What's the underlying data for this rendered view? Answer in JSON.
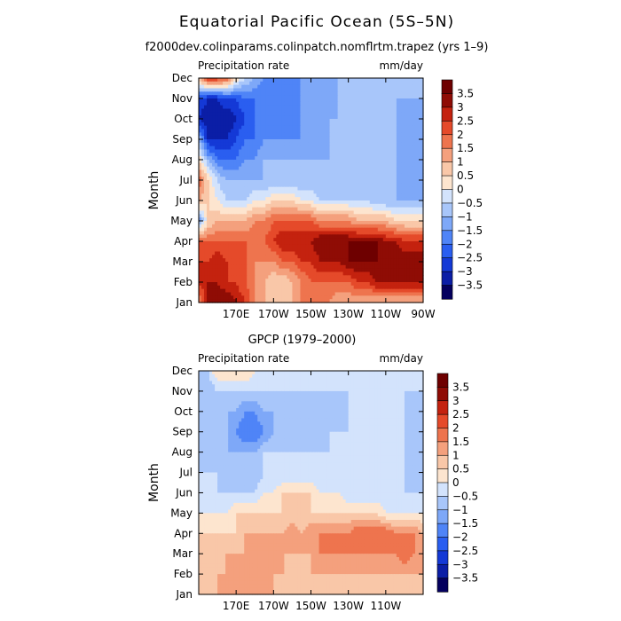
{
  "figure": {
    "title": "Equatorial Pacific Ocean (5S–5N)",
    "subtitle": "f2000dev.colinparams.colinpatch.nomflrtm.trapez (yrs 1–9)"
  },
  "chart_data": [
    {
      "type": "heatmap",
      "panel_title": "",
      "left_label": "Precipitation rate",
      "right_label": "mm/day",
      "xlabel": "",
      "ylabel": "Month",
      "x_range": [
        150,
        270
      ],
      "x_ticks": [
        {
          "lon": 170,
          "label": "170E"
        },
        {
          "lon": 190,
          "label": "170W"
        },
        {
          "lon": 210,
          "label": "150W"
        },
        {
          "lon": 230,
          "label": "130W"
        },
        {
          "lon": 250,
          "label": "110W"
        },
        {
          "lon": 270,
          "label": "90W"
        }
      ],
      "y_ticks": [
        "Jan",
        "Feb",
        "Mar",
        "Apr",
        "May",
        "Jun",
        "Jul",
        "Aug",
        "Sep",
        "Oct",
        "Nov",
        "Dec"
      ],
      "colorbar": {
        "levels": [
          -3.5,
          -3,
          -2.5,
          -2,
          -1.5,
          -1,
          -0.5,
          0,
          0.5,
          1,
          1.5,
          2,
          2.5,
          3,
          3.5
        ],
        "labels": [
          "3.5",
          "3",
          "2.5",
          "2",
          "1.5",
          "1",
          "0.5",
          "0",
          "−0.5",
          "−1",
          "−1.5",
          "−2",
          "−2.5",
          "−3",
          "−3.5"
        ]
      },
      "lons": [
        150,
        155,
        160,
        165,
        170,
        175,
        180,
        185,
        190,
        195,
        200,
        205,
        210,
        215,
        220,
        225,
        230,
        235,
        240,
        245,
        250,
        255,
        260,
        265,
        270
      ],
      "values": [
        [
          1.5,
          3.0,
          3.5,
          3.5,
          3.0,
          2.5,
          1.5,
          1.0,
          0.5,
          0.5,
          1.0,
          1.5,
          1.5,
          1.5,
          1.5,
          1.0,
          1.0,
          1.0,
          1.0,
          1.0,
          1.0,
          1.0,
          1.0,
          1.0,
          1.0
        ],
        [
          2.5,
          3.0,
          3.0,
          2.5,
          2.5,
          2.0,
          1.5,
          1.0,
          0.5,
          0.5,
          1.0,
          1.5,
          2.0,
          2.0,
          2.0,
          2.0,
          2.0,
          2.5,
          2.5,
          3.0,
          3.0,
          3.0,
          3.0,
          3.0,
          3.0
        ],
        [
          2.5,
          2.5,
          3.0,
          2.5,
          2.0,
          2.0,
          1.5,
          1.5,
          1.5,
          2.0,
          2.0,
          2.5,
          2.5,
          3.0,
          3.0,
          3.0,
          3.5,
          3.5,
          3.5,
          3.5,
          3.5,
          3.5,
          3.5,
          3.5,
          3.5
        ],
        [
          2.0,
          2.0,
          2.0,
          2.0,
          2.0,
          2.0,
          2.0,
          2.0,
          2.5,
          3.0,
          3.0,
          3.0,
          3.0,
          3.5,
          3.5,
          3.5,
          3.5,
          3.5,
          3.5,
          3.5,
          3.0,
          3.0,
          2.5,
          2.5,
          2.5
        ],
        [
          -1.5,
          0.5,
          1.0,
          1.0,
          1.0,
          1.0,
          1.5,
          1.5,
          2.0,
          2.0,
          2.0,
          2.0,
          2.0,
          1.5,
          1.5,
          1.5,
          1.5,
          1.0,
          1.0,
          1.0,
          1.0,
          0.5,
          0.5,
          0.5,
          0.5
        ],
        [
          1.0,
          0.5,
          0.0,
          -0.5,
          -0.5,
          -0.5,
          0.0,
          0.0,
          0.5,
          0.5,
          0.5,
          0.0,
          0.0,
          -0.5,
          -0.5,
          -0.5,
          -0.5,
          -0.5,
          -0.5,
          -1.0,
          -1.0,
          -1.0,
          -1.0,
          -1.0,
          -1.0
        ],
        [
          2.0,
          0.5,
          -0.5,
          -1.0,
          -1.0,
          -1.0,
          -1.0,
          -1.0,
          -1.0,
          -1.0,
          -1.0,
          -1.0,
          -1.0,
          -1.0,
          -1.0,
          -1.0,
          -1.0,
          -1.0,
          -1.0,
          -1.0,
          -1.0,
          -1.0,
          -1.5,
          -1.5,
          -1.0
        ],
        [
          0.5,
          -1.0,
          -2.0,
          -2.0,
          -2.0,
          -1.5,
          -1.5,
          -1.0,
          -1.0,
          -1.0,
          -1.0,
          -1.0,
          -1.0,
          -1.0,
          -1.0,
          -1.0,
          -1.0,
          -1.0,
          -1.0,
          -1.0,
          -1.0,
          -1.0,
          -1.5,
          -1.5,
          -1.0
        ],
        [
          -1.0,
          -3.0,
          -3.0,
          -3.0,
          -2.5,
          -2.0,
          -2.0,
          -1.5,
          -1.5,
          -1.5,
          -1.5,
          -1.5,
          -1.5,
          -1.5,
          -1.0,
          -1.0,
          -1.0,
          -1.0,
          -1.0,
          -1.0,
          -1.0,
          -1.0,
          -1.5,
          -1.5,
          -1.0
        ],
        [
          -3.0,
          -3.5,
          -3.5,
          -3.5,
          -3.0,
          -2.5,
          -2.0,
          -2.0,
          -2.0,
          -2.0,
          -2.0,
          -1.5,
          -1.5,
          -1.5,
          -1.0,
          -1.0,
          -1.0,
          -1.0,
          -1.0,
          -1.0,
          -1.0,
          -1.0,
          -1.5,
          -1.5,
          -1.0
        ],
        [
          -2.5,
          -3.0,
          -3.0,
          -2.5,
          -2.5,
          -2.0,
          -2.0,
          -2.0,
          -2.0,
          -2.0,
          -2.0,
          -1.5,
          -1.5,
          -1.5,
          -1.5,
          -1.0,
          -1.0,
          -1.0,
          -1.0,
          -1.0,
          -1.0,
          -1.0,
          -1.0,
          -1.0,
          -1.0
        ],
        [
          1.0,
          2.5,
          2.5,
          2.0,
          0.5,
          -0.5,
          -1.0,
          -1.5,
          -1.5,
          -1.5,
          -1.5,
          -1.5,
          -1.0,
          -1.0,
          -1.0,
          -1.0,
          -1.0,
          -1.0,
          -1.0,
          -1.0,
          -1.0,
          -1.0,
          -1.0,
          -1.0,
          -1.0
        ]
      ]
    },
    {
      "type": "heatmap",
      "panel_title": "GPCP (1979–2000)",
      "left_label": "Precipitation rate",
      "right_label": "mm/day",
      "xlabel": "",
      "ylabel": "Month",
      "x_range": [
        150,
        270
      ],
      "x_ticks": [
        {
          "lon": 170,
          "label": "170E"
        },
        {
          "lon": 190,
          "label": "170W"
        },
        {
          "lon": 210,
          "label": "150W"
        },
        {
          "lon": 230,
          "label": "130W"
        },
        {
          "lon": 250,
          "label": "110W"
        }
      ],
      "y_ticks": [
        "Jan",
        "Feb",
        "Mar",
        "Apr",
        "May",
        "Jun",
        "Jul",
        "Aug",
        "Sep",
        "Oct",
        "Nov",
        "Dec"
      ],
      "colorbar": {
        "levels": [
          -3.5,
          -3,
          -2.5,
          -2,
          -1.5,
          -1,
          -0.5,
          0,
          0.5,
          1,
          1.5,
          2,
          2.5,
          3,
          3.5
        ],
        "labels": [
          "3.5",
          "3",
          "2.5",
          "2",
          "1.5",
          "1",
          "0.5",
          "0",
          "−0.5",
          "−1",
          "−1.5",
          "−2",
          "−2.5",
          "−3",
          "−3.5"
        ]
      },
      "lons": [
        150,
        155,
        160,
        165,
        170,
        175,
        180,
        185,
        190,
        195,
        200,
        205,
        210,
        215,
        220,
        225,
        230,
        235,
        240,
        245,
        250,
        255,
        260,
        265,
        270
      ],
      "values": [
        [
          0.5,
          0.5,
          1.0,
          1.0,
          1.5,
          1.5,
          1.0,
          1.0,
          1.0,
          0.5,
          0.5,
          0.5,
          0.5,
          0.5,
          0.5,
          0.5,
          0.5,
          0.5,
          0.5,
          0.5,
          0.5,
          0.5,
          0.5,
          0.5,
          0.5
        ],
        [
          0.5,
          0.5,
          1.0,
          1.0,
          1.0,
          1.0,
          1.0,
          1.0,
          1.0,
          1.0,
          0.5,
          0.5,
          1.0,
          1.0,
          1.0,
          1.0,
          1.0,
          1.0,
          1.0,
          1.0,
          1.0,
          1.0,
          1.0,
          1.0,
          1.0
        ],
        [
          0.5,
          0.5,
          0.5,
          1.0,
          1.0,
          1.0,
          1.0,
          1.0,
          1.0,
          1.0,
          1.0,
          1.0,
          1.0,
          1.5,
          1.5,
          1.5,
          1.5,
          1.5,
          1.5,
          1.5,
          1.5,
          1.5,
          2.0,
          1.5,
          1.0
        ],
        [
          0.5,
          0.5,
          0.5,
          0.5,
          0.5,
          1.0,
          1.0,
          1.0,
          1.0,
          1.0,
          1.5,
          1.0,
          1.5,
          1.5,
          1.5,
          1.5,
          1.5,
          2.0,
          2.0,
          2.0,
          2.0,
          1.5,
          1.5,
          1.5,
          1.0
        ],
        [
          0.0,
          0.0,
          0.0,
          0.0,
          0.5,
          0.5,
          0.5,
          0.5,
          0.5,
          0.5,
          0.5,
          0.5,
          0.5,
          0.5,
          0.5,
          0.5,
          0.5,
          0.5,
          0.5,
          0.5,
          0.0,
          0.0,
          0.0,
          0.0,
          0.0
        ],
        [
          -0.5,
          -0.5,
          -0.5,
          -0.5,
          -0.5,
          -0.5,
          -0.5,
          0.0,
          0.0,
          0.5,
          0.5,
          0.5,
          0.5,
          0.0,
          0.0,
          0.0,
          -0.5,
          -0.5,
          -0.5,
          -0.5,
          -0.5,
          -0.5,
          -0.5,
          -0.5,
          -0.5
        ],
        [
          -0.5,
          -0.5,
          -0.5,
          -1.0,
          -1.0,
          -1.0,
          -1.0,
          -0.5,
          -0.5,
          -0.5,
          -0.5,
          -0.5,
          -0.5,
          -0.5,
          -0.5,
          -0.5,
          -0.5,
          -0.5,
          -0.5,
          -0.5,
          -0.5,
          -0.5,
          -0.5,
          -1.0,
          -0.5
        ],
        [
          -1.0,
          -1.0,
          -1.0,
          -1.0,
          -1.0,
          -1.0,
          -1.0,
          -0.5,
          -0.5,
          -0.5,
          -0.5,
          -0.5,
          -0.5,
          -0.5,
          -0.5,
          -0.5,
          -0.5,
          -0.5,
          -0.5,
          -0.5,
          -0.5,
          -0.5,
          -0.5,
          -1.0,
          -0.5
        ],
        [
          -1.0,
          -1.0,
          -1.0,
          -1.0,
          -1.5,
          -2.0,
          -2.0,
          -1.5,
          -1.0,
          -1.0,
          -1.0,
          -1.0,
          -1.0,
          -1.0,
          -0.5,
          -0.5,
          -0.5,
          -0.5,
          -0.5,
          -0.5,
          -0.5,
          -0.5,
          -0.5,
          -1.0,
          -0.5
        ],
        [
          -1.0,
          -1.0,
          -1.0,
          -1.0,
          -1.0,
          -1.5,
          -1.5,
          -1.0,
          -1.0,
          -1.0,
          -1.0,
          -1.0,
          -1.0,
          -1.0,
          -1.0,
          -1.0,
          -0.5,
          -0.5,
          -0.5,
          -0.5,
          -0.5,
          -0.5,
          -0.5,
          -1.0,
          -0.5
        ],
        [
          -1.0,
          -1.0,
          -0.5,
          -0.5,
          -0.5,
          -0.5,
          -0.5,
          -0.5,
          -0.5,
          -0.5,
          -0.5,
          -0.5,
          -0.5,
          -0.5,
          -0.5,
          -0.5,
          -0.5,
          -0.5,
          -0.5,
          -0.5,
          -0.5,
          -0.5,
          -0.5,
          -0.5,
          -0.5
        ],
        [
          -0.5,
          -0.5,
          0.5,
          0.5,
          0.5,
          0.5,
          0.0,
          0.0,
          -0.5,
          -0.5,
          -0.5,
          -0.5,
          -0.5,
          -0.5,
          -0.5,
          -0.5,
          -0.5,
          -0.5,
          -0.5,
          -0.5,
          -0.5,
          -0.5,
          -0.5,
          -0.5,
          -0.5
        ]
      ]
    }
  ],
  "colors": {
    "palette": [
      "#04005e",
      "#0b1ea6",
      "#1439d6",
      "#2a5ef0",
      "#4f84f7",
      "#7ea8f8",
      "#a8c6fa",
      "#d3e3fc",
      "#fde5cf",
      "#f9c7a8",
      "#f4a07d",
      "#ee744e",
      "#e54a2a",
      "#c4220f",
      "#8f0c05",
      "#6e0000"
    ],
    "frame": "#000000"
  }
}
